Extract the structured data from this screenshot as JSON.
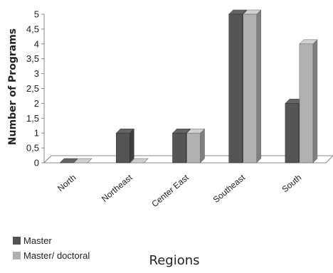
{
  "chart_data": {
    "type": "bar",
    "xlabel": "Regions",
    "ylabel": "Number of Programs",
    "ylim": [
      0,
      5
    ],
    "y_ticks": [
      "0",
      "0,5",
      "1",
      "1,5",
      "2",
      "2,5",
      "3",
      "3,5",
      "4",
      "4,5",
      "5"
    ],
    "categories": [
      "North",
      "Northeast",
      "Center East",
      "Southeast",
      "South"
    ],
    "series": [
      {
        "name": "Master",
        "values": [
          0,
          1,
          1,
          5,
          2
        ],
        "color": "#555555"
      },
      {
        "name": "Master/ doctoral",
        "values": [
          0,
          0,
          1,
          5,
          4
        ],
        "color": "#b0b0b0"
      }
    ],
    "legend_position": "bottom-left",
    "grid": false,
    "style": "3d"
  }
}
